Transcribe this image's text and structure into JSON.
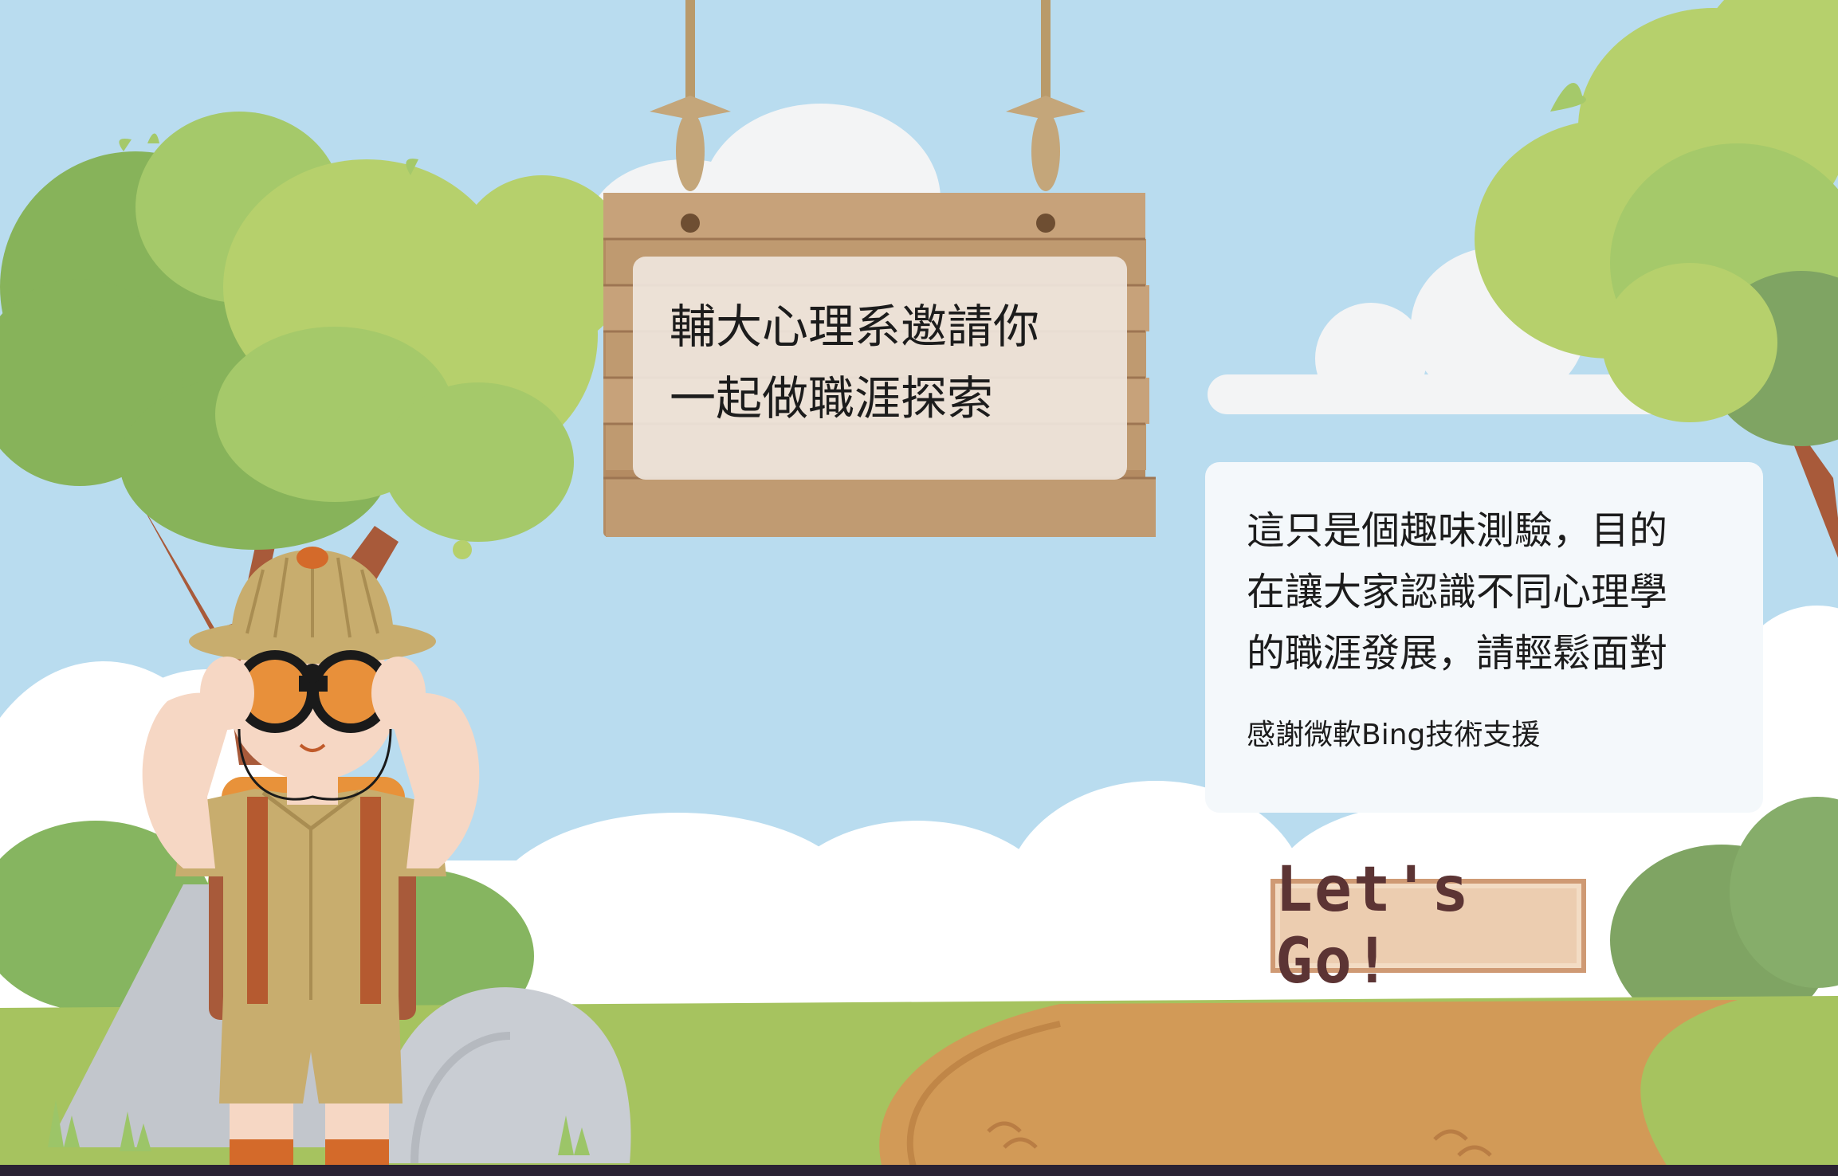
{
  "sign": {
    "line1": "輔大心理系邀請你",
    "line2": "一起做職涯探索"
  },
  "info": {
    "line1": "這只是個趣味測驗，目的",
    "line2": "在讓大家認識不同心理學",
    "line3": "的職涯發展，請輕鬆面對",
    "credit": "感謝微軟Bing技術支援"
  },
  "start_button": {
    "label": "Let's Go!"
  },
  "colors": {
    "sky": "#b9dcef",
    "grass": "#a6c35f",
    "path": "#d29a57",
    "wood": "#c7a27a",
    "button_bg": "#eccdb0",
    "button_text": "#5c3434"
  }
}
